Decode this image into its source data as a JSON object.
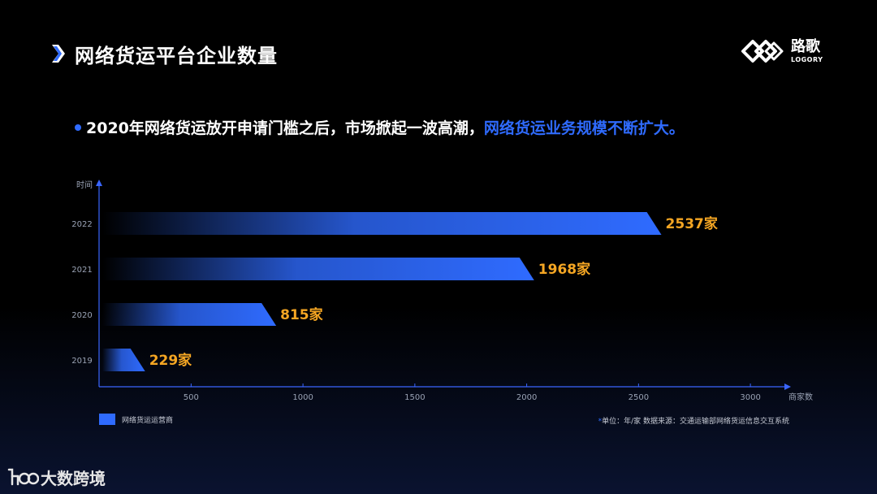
{
  "header": {
    "title": "网络货运平台企业数量"
  },
  "logo": {
    "cn": "路歌",
    "en": "LOGORY"
  },
  "headline": {
    "text": "2020年网络货运放开申请门槛之后，市场掀起一波高潮，",
    "highlight": "网络货运业务规模不断扩大。"
  },
  "chart_data": {
    "type": "bar",
    "orientation": "horizontal",
    "categories": [
      "2022",
      "2021",
      "2020",
      "2019"
    ],
    "values": [
      2537,
      1968,
      815,
      229
    ],
    "value_labels": [
      "2537家",
      "1968家",
      "815家",
      "229家"
    ],
    "ylabel": "时间",
    "xlabel": "商家数",
    "xticks": [
      500,
      1000,
      1500,
      2000,
      2500,
      3000
    ],
    "xlim": [
      80,
      3200
    ],
    "grid": false,
    "legend_position": "bottom-left",
    "series": [
      {
        "name": "网络货运运营商",
        "values": [
          2537,
          1968,
          815,
          229
        ]
      }
    ],
    "colors": {
      "bar": "#2f6bff",
      "value_label": "#f5a623",
      "axis": "#3a66ff"
    }
  },
  "legend": {
    "label": "网络货运运营商"
  },
  "footnote": {
    "star": "*",
    "text": "单位：年/家    数据来源：交通运输部网络货运信息交互系统"
  },
  "brand": {
    "text": "大数跨境"
  }
}
